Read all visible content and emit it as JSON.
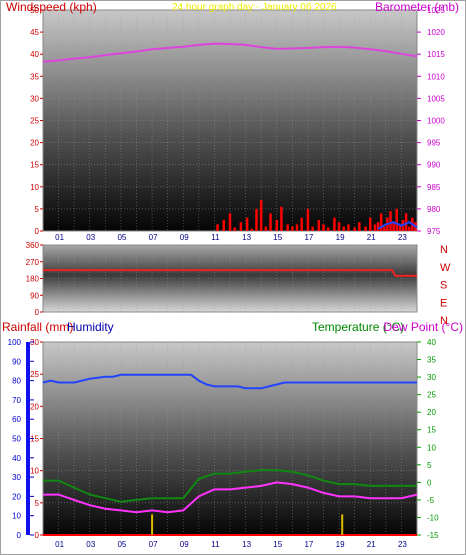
{
  "chart_data": [
    {
      "type": "line",
      "title": "24 hour graph day - January 06 2026",
      "x_ticks": [
        "01",
        "03",
        "05",
        "07",
        "09",
        "11",
        "13",
        "15",
        "17",
        "19",
        "21",
        "23"
      ],
      "xlim": [
        0,
        24
      ],
      "left_axis": {
        "label": "Windspeed (kph)",
        "ylim": [
          0,
          50
        ],
        "ticks": [
          0,
          5,
          10,
          15,
          20,
          25,
          30,
          35,
          40,
          45,
          50
        ],
        "color": "#cc0000"
      },
      "right_axis": {
        "label": "Barometer (mb)",
        "ylim": [
          975,
          1025
        ],
        "ticks": [
          975,
          980,
          985,
          990,
          995,
          1000,
          1005,
          1010,
          1015,
          1020,
          1025
        ],
        "color": "#cc00cc"
      },
      "grid": true,
      "series": [
        {
          "axis": "right",
          "color": "#dd44dd",
          "x": [
            0,
            1,
            2,
            3,
            4,
            5,
            6,
            7,
            8,
            9,
            10,
            11,
            12,
            13,
            14,
            15,
            16,
            17,
            18,
            19,
            20,
            21,
            22,
            23,
            24
          ],
          "y": [
            1013.3,
            1013.6,
            1014.0,
            1014.3,
            1014.8,
            1015.2,
            1015.6,
            1016.1,
            1016.4,
            1016.7,
            1017.1,
            1017.4,
            1017.3,
            1017.1,
            1016.6,
            1016.2,
            1016.3,
            1016.4,
            1016.6,
            1016.7,
            1016.5,
            1016.1,
            1015.7,
            1015.1,
            1014.5
          ]
        },
        {
          "axis": "left",
          "style": "bars",
          "color": "#ff0000",
          "x": [
            11.2,
            11.6,
            12.0,
            12.3,
            12.7,
            13.1,
            13.4,
            13.7,
            14.0,
            14.3,
            14.6,
            15.0,
            15.3,
            15.7,
            16.0,
            16.3,
            16.6,
            17.0,
            17.3,
            17.7,
            18.0,
            18.3,
            18.7,
            19.0,
            19.3,
            19.6,
            20.0,
            20.3,
            20.7,
            21.0,
            21.3,
            21.5,
            21.7,
            21.9,
            22.1,
            22.3,
            22.5,
            22.7,
            22.9,
            23.1,
            23.3,
            23.5,
            23.7,
            23.9
          ],
          "y": [
            1.5,
            2.5,
            4,
            0.8,
            2,
            3,
            0.5,
            5,
            7,
            1,
            4,
            2.5,
            5.5,
            1.5,
            1,
            1.5,
            3,
            5,
            1,
            2.5,
            1.5,
            0.8,
            3,
            2,
            1,
            1.5,
            0.8,
            2,
            1,
            3,
            1.5,
            2,
            4,
            1,
            3,
            4.5,
            2,
            5,
            1.5,
            2.5,
            4,
            1,
            3,
            2
          ]
        },
        {
          "axis": "left",
          "color": "#2244ff",
          "x": [
            21.5,
            22.0,
            22.5,
            23.0,
            23.5,
            24.0
          ],
          "y": [
            0.5,
            1.5,
            2.0,
            1.2,
            2.0,
            0.8
          ]
        }
      ]
    },
    {
      "type": "line",
      "x_ticks": [],
      "xlim": [
        0,
        24
      ],
      "left_axis": {
        "label": "",
        "ylim": [
          0,
          360
        ],
        "ticks": [
          0,
          90,
          180,
          270,
          360
        ],
        "color": "#cc0000"
      },
      "right_axis": {
        "label": "",
        "ylim": [
          0,
          360
        ],
        "ticks": [
          "N",
          "W",
          "S",
          "E",
          "N"
        ],
        "color": "#cc0000"
      },
      "grid": true,
      "series": [
        {
          "axis": "left",
          "color": "#ee2222",
          "x": [
            0,
            22.4,
            22.6,
            24
          ],
          "y": [
            225,
            225,
            195,
            195
          ]
        }
      ]
    },
    {
      "type": "line",
      "x_ticks": [
        "01",
        "03",
        "05",
        "07",
        "09",
        "11",
        "13",
        "15",
        "17",
        "19",
        "21",
        "23"
      ],
      "xlim": [
        0,
        24
      ],
      "humidity_axis": {
        "label": "Humidity",
        "ylim": [
          0,
          100
        ],
        "ticks": [
          0,
          10,
          20,
          30,
          40,
          50,
          60,
          70,
          80,
          90,
          100
        ],
        "color": "#0000cc"
      },
      "left_axis": {
        "label": "Rainfall (mm)",
        "ylim": [
          0,
          30
        ],
        "ticks": [
          0,
          5,
          10,
          15,
          20,
          25,
          30
        ],
        "color": "#cc0000"
      },
      "right_axis": {
        "label": "Temperature (°C)",
        "extra_label": "Dew Point (°C)",
        "ylim": [
          -15,
          40
        ],
        "ticks": [
          -15,
          -10,
          -5,
          0,
          5,
          10,
          15,
          20,
          25,
          30,
          35,
          40
        ],
        "color": "#009900",
        "extra_color": "#cc00cc"
      },
      "grid": true,
      "series": [
        {
          "name": "Humidity",
          "axis": "humidity",
          "color": "#2244ff",
          "x": [
            0,
            0.5,
            1,
            2,
            2.5,
            3,
            4,
            4.5,
            5,
            9.5,
            10,
            10.5,
            11,
            12,
            12.5,
            13,
            14,
            14.5,
            15,
            15.5,
            22.5,
            23,
            24
          ],
          "y": [
            79,
            80,
            79,
            79,
            80,
            81,
            82,
            82,
            83,
            83,
            80,
            78,
            77,
            77,
            77,
            76,
            76,
            77,
            78,
            79,
            79,
            79,
            79
          ]
        },
        {
          "axis": "right",
          "color": "#118811",
          "x": [
            0,
            1,
            2,
            3,
            4,
            5,
            6,
            7,
            8,
            9,
            10,
            11,
            12,
            13,
            14,
            15,
            16,
            17,
            18,
            19,
            20,
            21,
            22,
            23,
            24
          ],
          "y": [
            0.5,
            0.5,
            -1.5,
            -3.5,
            -4.5,
            -5.5,
            -5.0,
            -4.5,
            -4.5,
            -4.5,
            1.0,
            2.5,
            2.5,
            3.0,
            3.5,
            3.5,
            3.0,
            2.0,
            0.5,
            -0.5,
            -0.5,
            -1.0,
            -1.0,
            -1.0,
            -1.0
          ]
        },
        {
          "axis": "right",
          "color": "#ff33ff",
          "x": [
            0,
            1,
            2,
            3,
            4,
            5,
            6,
            7,
            8,
            9,
            10,
            11,
            12,
            13,
            14,
            15,
            16,
            17,
            18,
            19,
            20,
            21,
            22,
            23,
            24
          ],
          "y": [
            -3.5,
            -3.5,
            -5.0,
            -6.5,
            -7.5,
            -8.0,
            -8.5,
            -8.0,
            -8.5,
            -8.0,
            -4.0,
            -2.0,
            -2.0,
            -1.5,
            -1.0,
            0.0,
            -0.5,
            -1.5,
            -3.0,
            -4.0,
            -4.0,
            -4.5,
            -4.5,
            -4.5,
            -3.5
          ]
        },
        {
          "name": "Rainfall (mm)",
          "axis": "left",
          "color": "#ff0000",
          "x": [
            0,
            24
          ],
          "y": [
            0,
            0
          ]
        },
        {
          "axis": "left",
          "style": "bars",
          "color": "#ddbb00",
          "x": [
            7.0,
            19.2
          ],
          "y": [
            3.2,
            3.2
          ]
        }
      ]
    }
  ]
}
